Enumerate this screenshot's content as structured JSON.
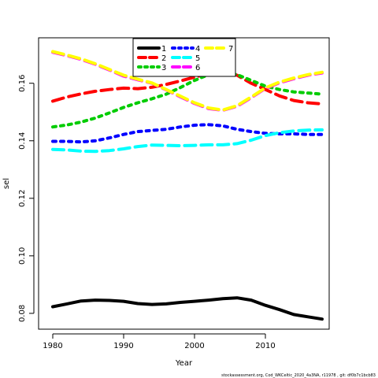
{
  "chart_data": {
    "type": "line",
    "xlabel": "Year",
    "ylabel": "sel",
    "xlim": [
      1978,
      2019
    ],
    "ylim": [
      0.0745,
      0.1758
    ],
    "x_ticks": [
      1980,
      1990,
      2000,
      2010
    ],
    "y_ticks": [
      0.08,
      0.1,
      0.12,
      0.14,
      0.16
    ],
    "y_tick_labels": [
      "0.08",
      "0.10",
      "0.12",
      "0.14",
      "0.16"
    ],
    "legend_placement": "top-center",
    "footer": "stockassessment.org, Cod_WKCeltic_2020_4a3NA, r11978 , git: df0b7c1bcb83",
    "x": [
      1980,
      1982,
      1984,
      1986,
      1988,
      1990,
      1992,
      1994,
      1996,
      1998,
      2000,
      2002,
      2004,
      2006,
      2008,
      2010,
      2012,
      2014,
      2016,
      2018
    ],
    "series": [
      {
        "name": "1",
        "color": "#000000",
        "dash": "solid",
        "values": [
          0.0823,
          0.0833,
          0.0843,
          0.0846,
          0.0845,
          0.0842,
          0.0834,
          0.0831,
          0.0833,
          0.0838,
          0.0842,
          0.0846,
          0.0851,
          0.0854,
          0.0846,
          0.0828,
          0.0813,
          0.0796,
          0.0788,
          0.078
        ]
      },
      {
        "name": "2",
        "color": "#ff0000",
        "dash": "dash",
        "values": [
          0.1538,
          0.1552,
          0.1563,
          0.1572,
          0.1578,
          0.1583,
          0.1581,
          0.1586,
          0.1596,
          0.1608,
          0.1621,
          0.1634,
          0.1644,
          0.1628,
          0.16,
          0.1578,
          0.1556,
          0.154,
          0.1532,
          0.1528
        ]
      },
      {
        "name": "3",
        "color": "#00cc00",
        "dash": "dot",
        "values": [
          0.1448,
          0.1455,
          0.1465,
          0.1479,
          0.1497,
          0.1516,
          0.1532,
          0.1546,
          0.1562,
          0.1585,
          0.161,
          0.163,
          0.164,
          0.163,
          0.161,
          0.159,
          0.1578,
          0.157,
          0.1566,
          0.1562
        ]
      },
      {
        "name": "4",
        "color": "#0000ff",
        "dash": "dot",
        "values": [
          0.1398,
          0.1398,
          0.1396,
          0.14,
          0.141,
          0.1422,
          0.1432,
          0.1436,
          0.144,
          0.1448,
          0.1454,
          0.1456,
          0.1452,
          0.144,
          0.1432,
          0.1426,
          0.1424,
          0.1424,
          0.1422,
          0.1422
        ]
      },
      {
        "name": "5",
        "color": "#00ffff",
        "dash": "dash",
        "values": [
          0.137,
          0.1368,
          0.1364,
          0.1363,
          0.1366,
          0.1372,
          0.138,
          0.1385,
          0.1384,
          0.1383,
          0.1384,
          0.1386,
          0.1386,
          0.139,
          0.1402,
          0.1418,
          0.1428,
          0.1434,
          0.1437,
          0.1438
        ]
      },
      {
        "name": "6",
        "color": "#ff00ff",
        "dash": "dash",
        "values": [
          0.1708,
          0.1696,
          0.1683,
          0.1666,
          0.1646,
          0.1625,
          0.1612,
          0.16,
          0.1577,
          0.1553,
          0.153,
          0.1512,
          0.1506,
          0.152,
          0.155,
          0.1582,
          0.1602,
          0.1616,
          0.1628,
          0.1636
        ]
      },
      {
        "name": "7",
        "color": "#ffff00",
        "dash": "dash",
        "values": [
          0.171,
          0.1698,
          0.1685,
          0.1668,
          0.1648,
          0.1628,
          0.1614,
          0.1601,
          0.1578,
          0.1555,
          0.1532,
          0.1514,
          0.1507,
          0.1522,
          0.1552,
          0.1584,
          0.1604,
          0.1618,
          0.163,
          0.1638
        ]
      }
    ]
  }
}
